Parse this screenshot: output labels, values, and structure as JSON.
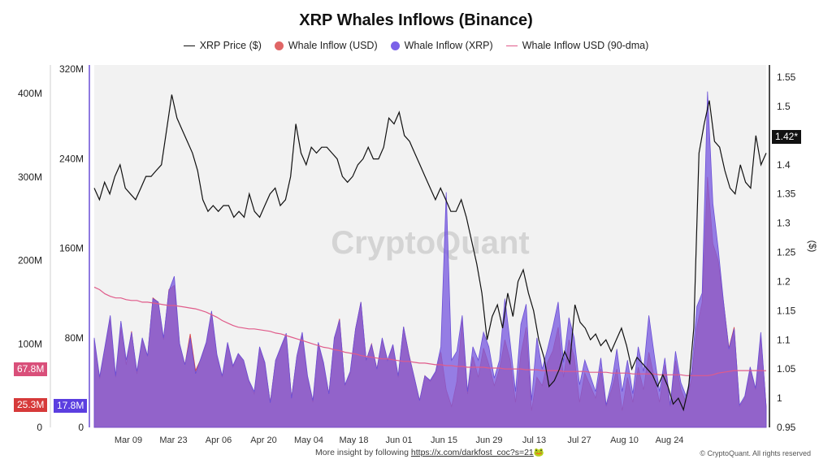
{
  "chart_data": {
    "type": "line",
    "title": "XRP Whales Inflows (Binance)",
    "legend": [
      {
        "label": "XRP Price ($)",
        "color": "#111111",
        "kind": "line"
      },
      {
        "label": "Whale Inflow (USD)",
        "color": "#e06666",
        "kind": "dot"
      },
      {
        "label": "Whale Inflow (XRP)",
        "color": "#7b61e8",
        "kind": "dot"
      },
      {
        "label": "Whale Inflow USD (90-dma)",
        "color": "#e05b8a",
        "kind": "line"
      }
    ],
    "x_ticks": [
      "Mar 09",
      "Mar 23",
      "Apr 06",
      "Apr 20",
      "May 04",
      "May 18",
      "Jun 01",
      "Jun 15",
      "Jun 29",
      "Jul 13",
      "Jul 27",
      "Aug 10",
      "Aug 24"
    ],
    "left_usd_axis": {
      "ticks": [
        "0",
        "100M",
        "200M",
        "300M",
        "400M"
      ],
      "range": [
        0,
        400
      ]
    },
    "left_xrp_axis": {
      "ticks": [
        "0",
        "80M",
        "160M",
        "240M",
        "320M"
      ],
      "range": [
        0,
        320
      ]
    },
    "right_axis": {
      "label": "($)",
      "ticks": [
        "0.95",
        "1",
        "1.05",
        "1.1",
        "1.15",
        "1.2",
        "1.25",
        "1.3",
        "1.35",
        "1.4",
        "1.45",
        "1.5",
        "1.55"
      ],
      "range": [
        0.95,
        1.55
      ]
    },
    "last_values": {
      "price": "1.42*",
      "inflow_usd_90dma": "67.8M",
      "inflow_usd": "25.3M",
      "inflow_xrp": "17.8M"
    },
    "series": [
      {
        "name": "XRP Price ($)",
        "color": "#111111",
        "axis": "right",
        "values": [
          1.36,
          1.34,
          1.37,
          1.35,
          1.38,
          1.4,
          1.36,
          1.35,
          1.34,
          1.36,
          1.38,
          1.38,
          1.39,
          1.4,
          1.46,
          1.52,
          1.48,
          1.46,
          1.44,
          1.42,
          1.39,
          1.34,
          1.32,
          1.33,
          1.32,
          1.33,
          1.33,
          1.31,
          1.32,
          1.31,
          1.35,
          1.32,
          1.31,
          1.33,
          1.35,
          1.36,
          1.33,
          1.34,
          1.38,
          1.47,
          1.42,
          1.4,
          1.43,
          1.42,
          1.43,
          1.43,
          1.42,
          1.41,
          1.38,
          1.37,
          1.38,
          1.4,
          1.41,
          1.43,
          1.41,
          1.41,
          1.43,
          1.48,
          1.47,
          1.49,
          1.45,
          1.44,
          1.42,
          1.4,
          1.38,
          1.36,
          1.34,
          1.36,
          1.34,
          1.32,
          1.32,
          1.34,
          1.31,
          1.27,
          1.23,
          1.18,
          1.1,
          1.14,
          1.16,
          1.12,
          1.18,
          1.14,
          1.2,
          1.22,
          1.18,
          1.15,
          1.1,
          1.07,
          1.02,
          1.03,
          1.05,
          1.08,
          1.06,
          1.16,
          1.13,
          1.12,
          1.1,
          1.11,
          1.09,
          1.1,
          1.08,
          1.1,
          1.12,
          1.09,
          1.05,
          1.07,
          1.06,
          1.05,
          1.04,
          1.02,
          1.04,
          1.02,
          0.99,
          1.0,
          0.98,
          1.02,
          1.12,
          1.42,
          1.47,
          1.51,
          1.44,
          1.43,
          1.39,
          1.36,
          1.35,
          1.4,
          1.37,
          1.36,
          1.45,
          1.4,
          1.42
        ]
      },
      {
        "name": "Whale Inflow (USD)",
        "color": "#e06666",
        "axis": "left_usd",
        "values": [
          105,
          58,
          95,
          130,
          60,
          120,
          75,
          115,
          64,
          105,
          85,
          155,
          150,
          105,
          165,
          170,
          100,
          75,
          112,
          68,
          82,
          100,
          138,
          85,
          60,
          100,
          72,
          88,
          80,
          55,
          40,
          95,
          75,
          30,
          80,
          95,
          110,
          35,
          85,
          110,
          60,
          30,
          100,
          75,
          40,
          105,
          130,
          50,
          65,
          118,
          150,
          80,
          100,
          70,
          105,
          80,
          98,
          60,
          120,
          88,
          60,
          32,
          62,
          55,
          65,
          90,
          45,
          25,
          55,
          130,
          40,
          85,
          60,
          95,
          75,
          50,
          70,
          105,
          80,
          30,
          88,
          120,
          20,
          60,
          50,
          78,
          92,
          120,
          60,
          105,
          85,
          30,
          65,
          50,
          35,
          70,
          25,
          45,
          70,
          20,
          60,
          30,
          72,
          45,
          90,
          60,
          30,
          75,
          25,
          80,
          45,
          30,
          58,
          120,
          150,
          300,
          220,
          200,
          150,
          95,
          120,
          25,
          35,
          70,
          45,
          110,
          25
        ]
      },
      {
        "name": "Whale Inflow (XRP)",
        "color": "#7b61e8",
        "axis": "left_xrp",
        "values": [
          80,
          45,
          72,
          100,
          46,
          95,
          60,
          85,
          50,
          80,
          64,
          115,
          112,
          80,
          122,
          135,
          75,
          56,
          80,
          48,
          62,
          76,
          104,
          65,
          46,
          76,
          55,
          66,
          60,
          42,
          32,
          72,
          58,
          22,
          60,
          72,
          84,
          26,
          64,
          85,
          46,
          24,
          76,
          58,
          30,
          80,
          96,
          38,
          50,
          88,
          112,
          60,
          74,
          52,
          80,
          60,
          74,
          46,
          90,
          65,
          45,
          24,
          46,
          42,
          50,
          72,
          210,
          60,
          68,
          100,
          32,
          72,
          60,
          85,
          72,
          44,
          60,
          115,
          75,
          32,
          92,
          110,
          24,
          80,
          52,
          70,
          90,
          112,
          58,
          98,
          80,
          38,
          60,
          46,
          32,
          62,
          20,
          40,
          70,
          32,
          60,
          30,
          72,
          50,
          100,
          65,
          32,
          62,
          20,
          68,
          40,
          28,
          50,
          108,
          120,
          300,
          200,
          160,
          112,
          70,
          88,
          20,
          28,
          54,
          35,
          85,
          18
        ]
      },
      {
        "name": "Whale Inflow USD (90-dma)",
        "color": "#e05b8a",
        "axis": "left_usd",
        "values": [
          168,
          165,
          160,
          157,
          155,
          155,
          153,
          152,
          152,
          150,
          150,
          149,
          148,
          147,
          146,
          146,
          145,
          144,
          143,
          142,
          140,
          138,
          135,
          132,
          128,
          125,
          122,
          120,
          119,
          118,
          118,
          117,
          116,
          115,
          113,
          112,
          110,
          108,
          106,
          104,
          102,
          100,
          98,
          96,
          95,
          93,
          92,
          90,
          89,
          88,
          86,
          85,
          84,
          83,
          82,
          82,
          81,
          80,
          79,
          79,
          78,
          77,
          77,
          76,
          75,
          75,
          74,
          74,
          73,
          73,
          72,
          72,
          72,
          72,
          71,
          71,
          71,
          70,
          70,
          70,
          70,
          69,
          69,
          69,
          68,
          68,
          68,
          68,
          67,
          67,
          67,
          67,
          67,
          66,
          66,
          66,
          66,
          65,
          65,
          65,
          65,
          64,
          64,
          64,
          64,
          64,
          63,
          63,
          63,
          63,
          63,
          62,
          62,
          62,
          62,
          62,
          63,
          65,
          66,
          67,
          68,
          68,
          68,
          68,
          68,
          68,
          67.8
        ]
      }
    ]
  },
  "watermark": "CryptoQuant",
  "footer": {
    "text": "More insight by following ",
    "link": "https://x.com/darkfost_coc?s=21",
    "emoji": "🐸"
  },
  "credit": "© CryptoQuant. All rights reserved"
}
